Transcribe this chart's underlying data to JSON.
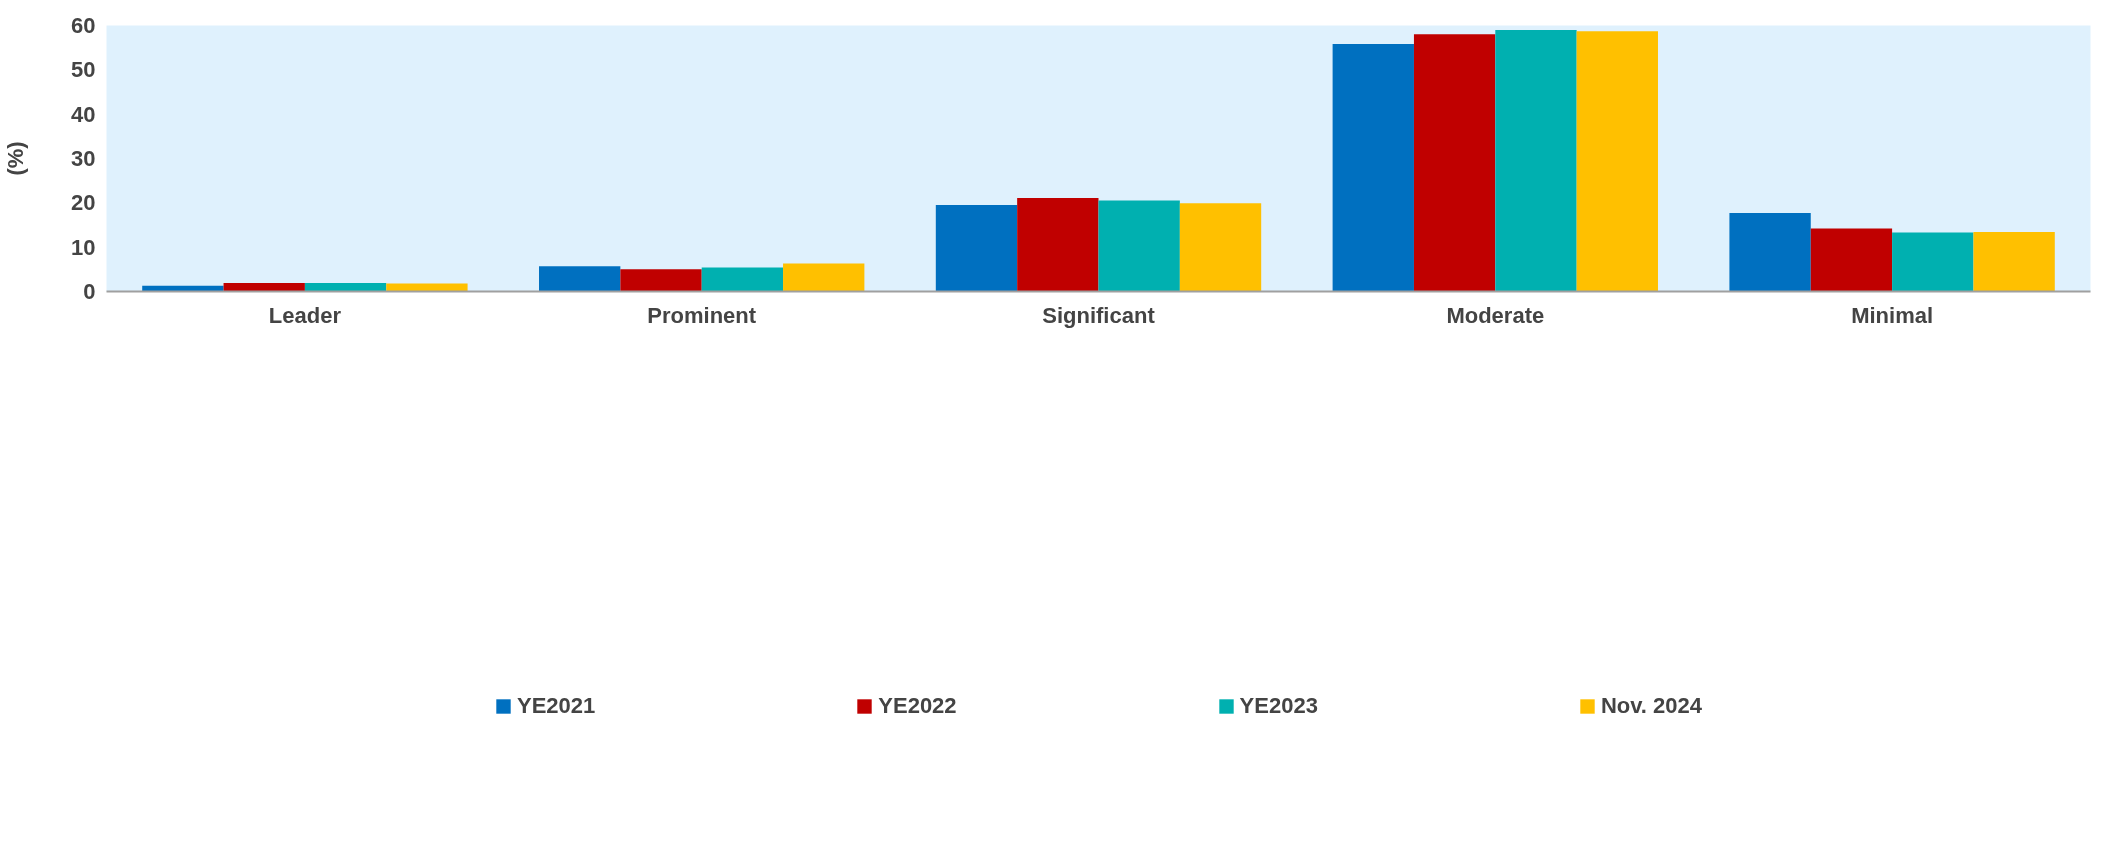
{
  "chart_data": {
    "type": "bar",
    "ylabel": "(%)",
    "categories": [
      "Leader",
      "Prominent",
      "Significant",
      "Moderate",
      "Minimal"
    ],
    "series": [
      {
        "name": "YE2021",
        "color": "#0070c0",
        "values": [
          1.3,
          5.7,
          19.5,
          55.8,
          17.7
        ]
      },
      {
        "name": "YE2022",
        "color": "#c00000",
        "values": [
          1.9,
          5.0,
          21.1,
          58.0,
          14.2
        ]
      },
      {
        "name": "YE2023",
        "color": "#00b0b0",
        "values": [
          1.9,
          5.4,
          20.5,
          59.0,
          13.3
        ]
      },
      {
        "name": "Nov. 2024",
        "color": "#ffc000",
        "values": [
          1.8,
          6.3,
          19.9,
          58.7,
          13.4
        ]
      }
    ],
    "ylim": [
      0,
      60
    ],
    "yticks": [
      0,
      10,
      20,
      30,
      40,
      50,
      60
    ],
    "grid": false,
    "legend": "bottom"
  }
}
